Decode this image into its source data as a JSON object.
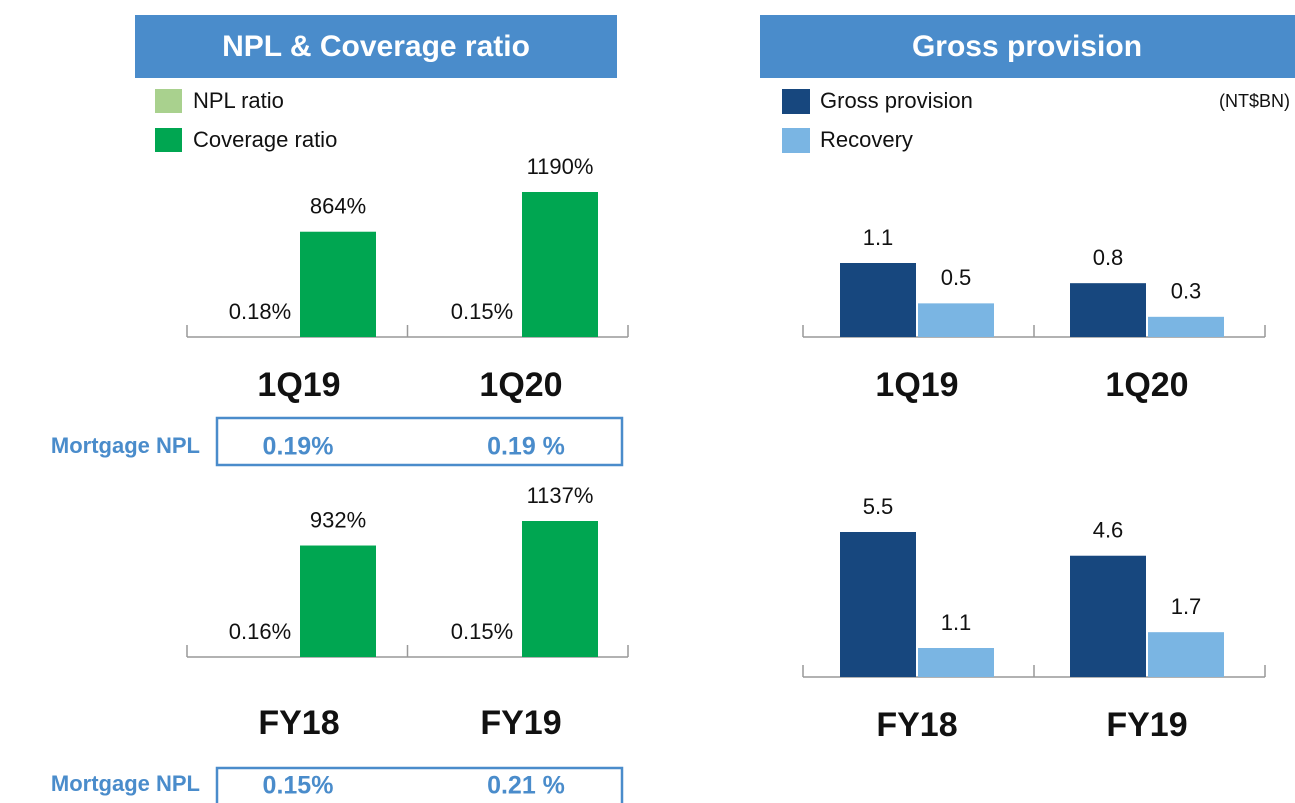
{
  "panels": [
    {
      "title": "NPL & Coverage ratio"
    },
    {
      "title": "Gross provision",
      "unit": "(NT$BN)"
    }
  ],
  "chart_data": [
    {
      "type": "bar",
      "categories": [
        "1Q19",
        "1Q20"
      ],
      "series": [
        {
          "name": "NPL ratio",
          "color": "#a9d18e",
          "values": [
            0.18,
            0.15
          ],
          "value_labels": [
            "0.18%",
            "0.15%"
          ]
        },
        {
          "name": "Coverage ratio",
          "color": "#00a651",
          "values": [
            864,
            1190
          ],
          "value_labels": [
            "864%",
            "1190%"
          ]
        }
      ]
    },
    {
      "type": "bar",
      "categories": [
        "FY18",
        "FY19"
      ],
      "series": [
        {
          "color": "#a9d18e",
          "values": [
            0.16,
            0.15
          ],
          "value_labels": [
            "0.16%",
            "0.15%"
          ]
        },
        {
          "color": "#00a651",
          "values": [
            932,
            1137
          ],
          "value_labels": [
            "932%",
            "1137%"
          ]
        }
      ]
    },
    {
      "type": "bar",
      "categories": [
        "1Q19",
        "1Q20"
      ],
      "series": [
        {
          "name": "Gross provision",
          "color": "#17477e",
          "values": [
            1.1,
            0.8
          ]
        },
        {
          "name": "Recovery",
          "color": "#7ab5e3",
          "values": [
            0.5,
            0.3
          ]
        }
      ]
    },
    {
      "type": "bar",
      "categories": [
        "FY18",
        "FY19"
      ],
      "series": [
        {
          "color": "#17477e",
          "values": [
            5.5,
            4.6
          ]
        },
        {
          "color": "#7ab5e3",
          "values": [
            1.1,
            1.7
          ]
        }
      ]
    }
  ],
  "mortgage": [
    {
      "label": "Mortgage NPL",
      "values": [
        "0.19%",
        "0.19 %"
      ]
    },
    {
      "label": "Mortgage NPL",
      "values": [
        "0.15%",
        "0.21 %"
      ]
    }
  ]
}
